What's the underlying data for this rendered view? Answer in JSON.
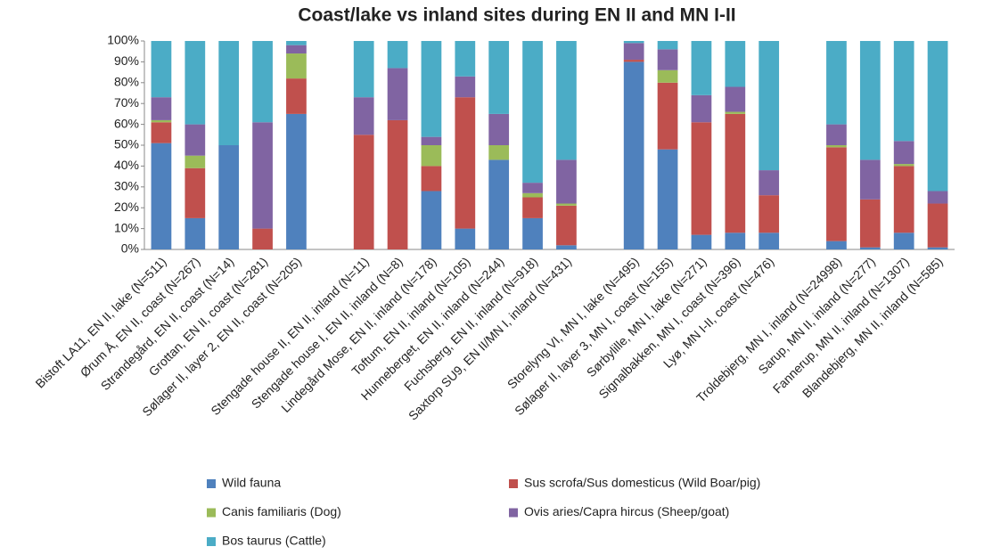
{
  "chart_data": {
    "type": "stacked_bar",
    "title": "Coast/lake vs inland sites during EN II and MN I-II",
    "categories": [
      "Bistoft LA11, EN II, lake (N=511)",
      "Ørum Å, EN II, coast (N=267)",
      "Strandegård, EN II, coast (N=14)",
      "Grottan, EN II, coast (N=281)",
      "Sølager II, layer 2, EN II, coast (N=205)",
      null,
      "Stengade house II, EN II, inland (N=11)",
      "Stengade house I, EN II, inland (N=8)",
      "Lindegård Mose, EN II, inland (N=178)",
      "Toftum, EN II, inland (N=105)",
      "Hunneberget, EN II, inland (N=244)",
      "Fuchsberg, EN II, inland (N=918)",
      "Saxtorp SU9, EN II/MN I, inland (N=431)",
      null,
      "Storelyng VI, MN I, lake (N=495)",
      "Sølager II, layer 3, MN I, coast (N=155)",
      "Sørbylille, MN I, lake (N=271)",
      "Signalbakken, MN I, coast (N=396)",
      "Lyø, MN I-II, coast (N=476)",
      null,
      "Troldebjerg, MN I, inland (N=24998)",
      "Sarup, MN II, inland (N=277)",
      "Fannerup, MN II, inland (N=1307)",
      "Blandebjerg, MN II, inland (N=585)"
    ],
    "series": [
      {
        "name": "Wild fauna",
        "color": "#4f81bd",
        "values": [
          51,
          15,
          50,
          0,
          65,
          null,
          0,
          0,
          28,
          10,
          43,
          15,
          2,
          null,
          90,
          48,
          7,
          8,
          8,
          null,
          4,
          1,
          8,
          1
        ]
      },
      {
        "name": "Sus scrofa/Sus domesticus (Wild Boar/pig)",
        "color": "#c0504d",
        "values": [
          10,
          24,
          0,
          10,
          17,
          null,
          55,
          62,
          12,
          63,
          0,
          10,
          19,
          null,
          1,
          32,
          54,
          57,
          18,
          null,
          45,
          23,
          32,
          21
        ]
      },
      {
        "name": "Canis familiaris (Dog)",
        "color": "#9bbb59",
        "values": [
          1,
          6,
          0,
          0,
          12,
          null,
          0,
          0,
          10,
          0,
          7,
          2,
          1,
          null,
          0,
          6,
          0,
          1,
          0,
          null,
          1,
          0,
          1,
          0
        ]
      },
      {
        "name": "Ovis aries/Capra hircus (Sheep/goat)",
        "color": "#8064a2",
        "values": [
          11,
          15,
          0,
          51,
          4,
          null,
          18,
          25,
          4,
          10,
          15,
          5,
          21,
          null,
          8,
          10,
          13,
          12,
          12,
          null,
          10,
          19,
          11,
          6
        ]
      },
      {
        "name": "Bos taurus (Cattle)",
        "color": "#4bacc6",
        "values": [
          27,
          40,
          50,
          39,
          2,
          null,
          27,
          13,
          46,
          17,
          35,
          68,
          57,
          null,
          1,
          4,
          26,
          22,
          62,
          null,
          40,
          57,
          48,
          72
        ]
      }
    ],
    "ylim": [
      0,
      100
    ],
    "yticks": [
      {
        "value": 0,
        "label": "0%"
      },
      {
        "value": 10,
        "label": "10%"
      },
      {
        "value": 20,
        "label": "20%"
      },
      {
        "value": 30,
        "label": "30%"
      },
      {
        "value": 40,
        "label": "40%"
      },
      {
        "value": 50,
        "label": "50%"
      },
      {
        "value": 60,
        "label": "60%"
      },
      {
        "value": 70,
        "label": "70%"
      },
      {
        "value": 80,
        "label": "80%"
      },
      {
        "value": 90,
        "label": "90%"
      },
      {
        "value": 100,
        "label": "100%"
      }
    ],
    "grid": false,
    "legend": "bottom"
  }
}
